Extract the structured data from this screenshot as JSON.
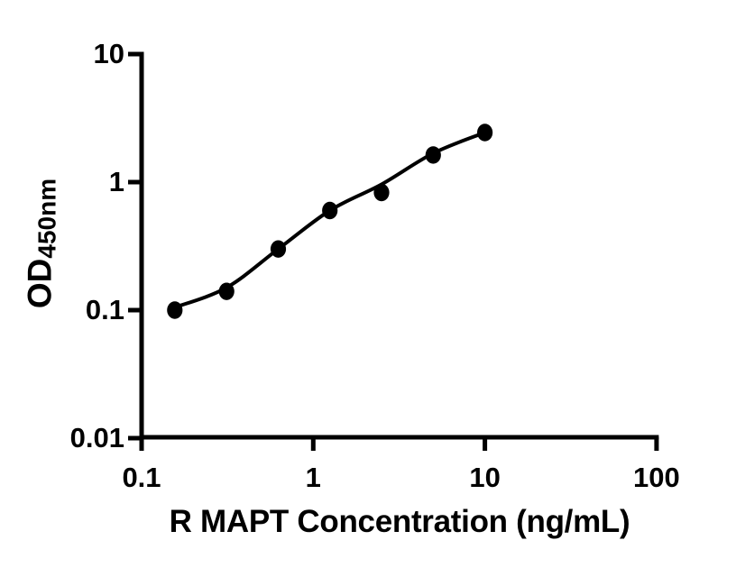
{
  "figure": {
    "background": "#ffffff",
    "ink_color": "#000000"
  },
  "chart_data": {
    "type": "scatter",
    "title": "",
    "xlabel": "R MAPT Concentration (ng/mL)",
    "ylabel_main": "OD",
    "ylabel_sub": "450nm",
    "x_scale": "log",
    "y_scale": "log",
    "xlim": [
      0.1,
      100
    ],
    "ylim": [
      0.01,
      10
    ],
    "grid": false,
    "legend_position": "none",
    "x_ticks": [
      {
        "value": 0.1,
        "label": "0.1"
      },
      {
        "value": 1,
        "label": "1"
      },
      {
        "value": 10,
        "label": "10"
      },
      {
        "value": 100,
        "label": "100"
      }
    ],
    "y_ticks": [
      {
        "value": 0.01,
        "label": "0.01"
      },
      {
        "value": 0.1,
        "label": "0.1"
      },
      {
        "value": 1,
        "label": "1"
      },
      {
        "value": 10,
        "label": "10"
      }
    ],
    "series": [
      {
        "name": "standard-points",
        "type": "scatter",
        "marker": "filled-circle",
        "color": "#000000",
        "x": [
          0.156,
          0.3125,
          0.625,
          1.25,
          2.5,
          5,
          10
        ],
        "y": [
          0.1,
          0.14,
          0.3,
          0.6,
          0.83,
          1.63,
          2.44
        ]
      },
      {
        "name": "fitted-curve",
        "type": "line",
        "color": "#000000",
        "x": [
          0.156,
          0.3125,
          0.625,
          1.25,
          2.5,
          5,
          10
        ],
        "y": [
          0.105,
          0.15,
          0.3,
          0.6,
          0.96,
          1.68,
          2.44
        ]
      }
    ]
  }
}
